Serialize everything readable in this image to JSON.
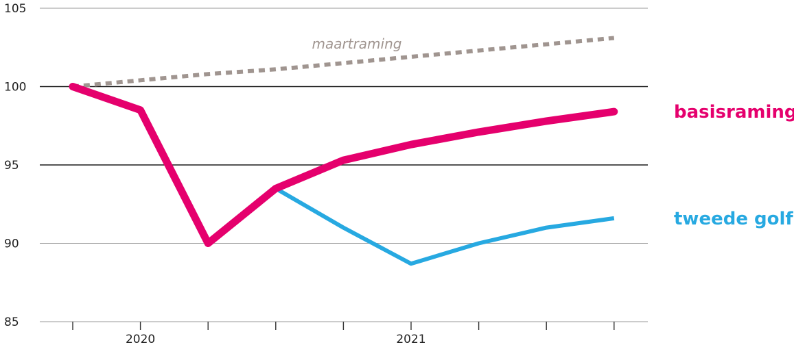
{
  "chart_data": {
    "type": "line",
    "title": "",
    "xlabel": "",
    "ylabel": "",
    "ylim": [
      85,
      105
    ],
    "yticks": [
      85,
      90,
      95,
      100,
      105
    ],
    "x": [
      0,
      1,
      2,
      3,
      4,
      5,
      6,
      7,
      8
    ],
    "x_tick_labels": [
      {
        "x": 1,
        "label": "2020"
      },
      {
        "x": 5,
        "label": "2021"
      }
    ],
    "series": [
      {
        "name": "maartraming",
        "color": "#a09590",
        "style": "dashed",
        "values": [
          100,
          100.4,
          100.8,
          101.1,
          101.5,
          101.9,
          102.3,
          102.7,
          103.1
        ]
      },
      {
        "name": "basisraming",
        "color": "#e5006d",
        "style": "solid-thick",
        "values": [
          100,
          98.5,
          90,
          93.5,
          95.3,
          96.3,
          97.1,
          97.8,
          98.4
        ]
      },
      {
        "name": "tweede golf",
        "color": "#27a9e1",
        "style": "solid",
        "x": [
          3,
          4,
          5,
          6,
          7,
          8
        ],
        "values": [
          93.5,
          91.0,
          88.7,
          90.0,
          91.0,
          91.6
        ]
      }
    ],
    "legend": "direct-labels-right",
    "grid": "horizontal"
  }
}
